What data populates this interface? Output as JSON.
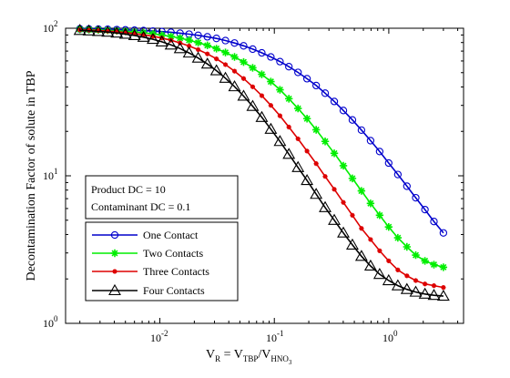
{
  "chart_data": {
    "type": "line",
    "x_scale": "log",
    "y_scale": "log",
    "xlim": [
      0.0015,
      4.5
    ],
    "ylim": [
      1,
      100
    ],
    "grid": false,
    "xlabel": {
      "main": "V",
      "sub_r": "R",
      "eq": " = V",
      "sub_tbp": "TBP",
      "slash": "/V",
      "sub_hno": "HNO",
      "sub_3": "3"
    },
    "ylabel": "Decontamination Factor of solute in TBP",
    "x_ticks": [
      {
        "value": 0.01,
        "base": "10",
        "exp": "-2"
      },
      {
        "value": 0.1,
        "base": "10",
        "exp": "-1"
      },
      {
        "value": 1,
        "base": "10",
        "exp": "0"
      }
    ],
    "y_ticks": [
      {
        "value": 1,
        "base": "10",
        "exp": "0"
      },
      {
        "value": 10,
        "base": "10",
        "exp": "1"
      },
      {
        "value": 100,
        "base": "10",
        "exp": "2"
      }
    ],
    "annotation": {
      "lines": [
        "Product DC = 10",
        "Contaminant DC = 0.1"
      ]
    },
    "legend_position": "lower-left",
    "x": [
      0.002,
      0.0024,
      0.0029,
      0.0035,
      0.0042,
      0.005,
      0.006,
      0.0072,
      0.0087,
      0.0104,
      0.0125,
      0.015,
      0.018,
      0.0216,
      0.026,
      0.0312,
      0.0374,
      0.0449,
      0.0539,
      0.0647,
      0.0777,
      0.0932,
      0.112,
      0.134,
      0.161,
      0.193,
      0.232,
      0.278,
      0.334,
      0.401,
      0.481,
      0.577,
      0.693,
      0.832,
      0.998,
      1.2,
      1.44,
      1.72,
      2.07,
      2.48,
      3.0
    ],
    "series": [
      {
        "name": "One Contact",
        "color": "#0000cc",
        "marker": "circle",
        "values": [
          99.0,
          98.8,
          98.6,
          98.3,
          97.9,
          97.5,
          97.0,
          96.4,
          95.7,
          94.9,
          93.9,
          92.6,
          91.2,
          89.5,
          87.5,
          85.3,
          82.5,
          79.4,
          76.0,
          72.2,
          68.1,
          63.9,
          59.4,
          54.9,
          50.2,
          45.5,
          40.9,
          36.3,
          31.9,
          27.7,
          23.9,
          20.4,
          17.3,
          14.6,
          12.2,
          10.2,
          8.5,
          7.1,
          5.9,
          4.9,
          4.1
        ]
      },
      {
        "name": "Two Contacts",
        "color": "#00ee00",
        "marker": "star",
        "values": [
          98.2,
          97.8,
          97.4,
          96.8,
          96.1,
          95.3,
          94.3,
          93.1,
          91.7,
          90.0,
          88.0,
          85.7,
          83.0,
          79.9,
          76.5,
          72.7,
          68.5,
          63.9,
          59.0,
          53.9,
          48.7,
          43.5,
          38.3,
          33.3,
          28.6,
          24.4,
          20.5,
          17.1,
          14.2,
          11.7,
          9.6,
          7.9,
          6.5,
          5.4,
          4.5,
          3.8,
          3.3,
          2.9,
          2.65,
          2.5,
          2.4
        ]
      },
      {
        "name": "Three Contacts",
        "color": "#dd0000",
        "marker": "dot",
        "values": [
          97.5,
          97.0,
          96.4,
          95.6,
          94.6,
          93.5,
          92.0,
          90.3,
          88.2,
          85.8,
          82.9,
          79.5,
          75.8,
          71.6,
          67.0,
          62.0,
          56.7,
          51.2,
          45.6,
          40.1,
          34.9,
          30.0,
          25.5,
          21.4,
          17.8,
          14.7,
          12.1,
          9.9,
          8.1,
          6.6,
          5.4,
          4.4,
          3.7,
          3.1,
          2.65,
          2.3,
          2.1,
          1.95,
          1.85,
          1.8,
          1.75
        ]
      },
      {
        "name": "Four Contacts",
        "color": "#000000",
        "marker": "triangle",
        "values": [
          96.8,
          96.1,
          95.2,
          94.2,
          92.9,
          91.3,
          89.3,
          87.0,
          84.2,
          80.9,
          77.1,
          72.8,
          68.0,
          62.8,
          57.3,
          51.6,
          45.9,
          40.2,
          34.7,
          29.6,
          24.9,
          20.7,
          17.1,
          14.0,
          11.4,
          9.3,
          7.5,
          6.1,
          5.0,
          4.1,
          3.4,
          2.85,
          2.45,
          2.15,
          1.95,
          1.8,
          1.7,
          1.63,
          1.58,
          1.55,
          1.53
        ]
      }
    ]
  }
}
